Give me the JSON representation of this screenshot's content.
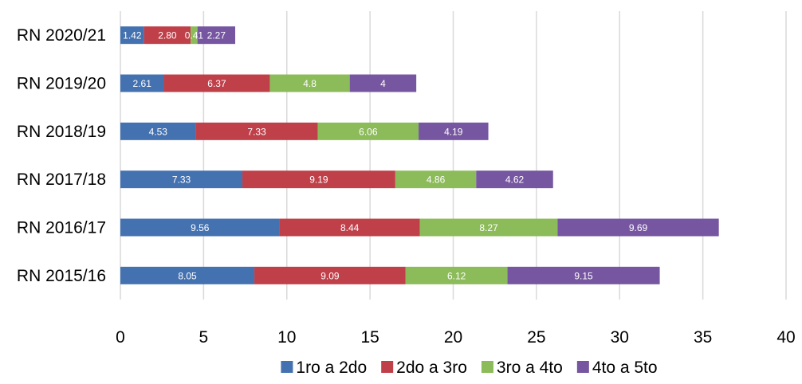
{
  "chart_data": {
    "type": "bar",
    "orientation": "horizontal",
    "stacked": true,
    "title": "",
    "xlabel": "",
    "ylabel": "",
    "categories": [
      "RN 2015/16",
      "RN 2016/17",
      "RN 2017/18",
      "RN 2018/19",
      "RN 2019/20",
      "RN 2020/21"
    ],
    "series": [
      {
        "name": "1ro a 2do",
        "color": "#4472b0",
        "values": [
          8.05,
          9.56,
          7.33,
          4.53,
          2.61,
          1.42
        ]
      },
      {
        "name": "2do a 3ro",
        "color": "#c0404a",
        "values": [
          9.09,
          8.44,
          9.19,
          7.33,
          6.37,
          2.8
        ]
      },
      {
        "name": "3ro a 4to",
        "color": "#8cbb5a",
        "values": [
          6.12,
          8.27,
          4.86,
          6.06,
          4.8,
          0.41
        ]
      },
      {
        "name": "4to a 5to",
        "color": "#7656a0",
        "values": [
          9.15,
          9.69,
          4.62,
          4.19,
          4,
          2.27
        ]
      }
    ],
    "data_labels": [
      [
        "8.05",
        "9.56",
        "7.33",
        "4.53",
        "2.61",
        "1.42"
      ],
      [
        "9.09",
        "8.44",
        "9.19",
        "7.33",
        "6.37",
        "2.80"
      ],
      [
        "6.12",
        "8.27",
        "4.86",
        "6.06",
        "4.8",
        "0.41"
      ],
      [
        "9.15",
        "9.69",
        "4.62",
        "4.19",
        "4",
        "2.27"
      ]
    ],
    "xlim": [
      0,
      40
    ],
    "xticks": [
      "0",
      "5",
      "10",
      "15",
      "20",
      "25",
      "30",
      "35",
      "40"
    ],
    "grid": true,
    "legend_position": "bottom"
  }
}
